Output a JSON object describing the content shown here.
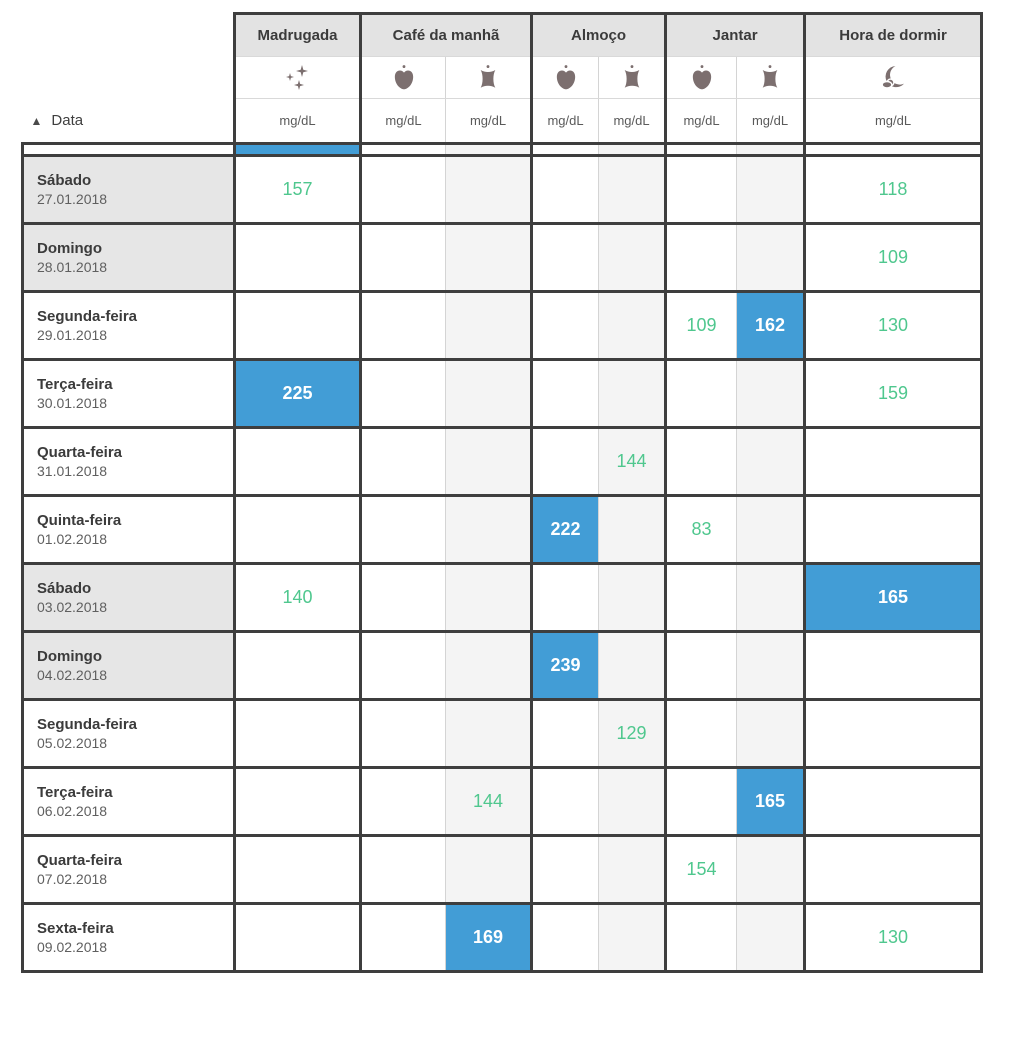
{
  "table": {
    "date_header": {
      "label": "Data",
      "sort_icon": "ascending-triangle"
    },
    "unit": "mg/dL",
    "groups": [
      {
        "label": "Madrugada",
        "icons": [
          "sparkles-icon"
        ],
        "cols": 1
      },
      {
        "label": "Café da manhã",
        "icons": [
          "apple-icon",
          "apple-core-icon"
        ],
        "cols": 2
      },
      {
        "label": "Almoço",
        "icons": [
          "apple-icon",
          "apple-core-icon"
        ],
        "cols": 2
      },
      {
        "label": "Jantar",
        "icons": [
          "apple-icon",
          "apple-core-icon"
        ],
        "cols": 2
      },
      {
        "label": "Hora de dormir",
        "icons": [
          "moon-cloud-icon"
        ],
        "cols": 1
      }
    ],
    "columns": [
      "madrugada",
      "cafe-before",
      "cafe-after",
      "almoco-before",
      "almoco-after",
      "jantar-before",
      "jantar-after",
      "hora-de-dormir"
    ],
    "partial_row": {
      "values": [
        "",
        "",
        "",
        "",
        "",
        "",
        "",
        ""
      ],
      "highlight": [
        0
      ]
    },
    "rows": [
      {
        "day": "Sábado",
        "date": "27.01.2018",
        "weekend": true,
        "values": [
          "157",
          "",
          "",
          "",
          "",
          "",
          "",
          "118"
        ],
        "highlight": []
      },
      {
        "day": "Domingo",
        "date": "28.01.2018",
        "weekend": true,
        "values": [
          "",
          "",
          "",
          "",
          "",
          "",
          "",
          "109"
        ],
        "highlight": []
      },
      {
        "day": "Segunda-feira",
        "date": "29.01.2018",
        "weekend": false,
        "values": [
          "",
          "",
          "",
          "",
          "",
          "109",
          "162",
          "130"
        ],
        "highlight": [
          6
        ]
      },
      {
        "day": "Terça-feira",
        "date": "30.01.2018",
        "weekend": false,
        "values": [
          "225",
          "",
          "",
          "",
          "",
          "",
          "",
          "159"
        ],
        "highlight": [
          0
        ]
      },
      {
        "day": "Quarta-feira",
        "date": "31.01.2018",
        "weekend": false,
        "values": [
          "",
          "",
          "",
          "",
          "144",
          "",
          "",
          ""
        ],
        "highlight": []
      },
      {
        "day": "Quinta-feira",
        "date": "01.02.2018",
        "weekend": false,
        "values": [
          "",
          "",
          "",
          "222",
          "",
          "83",
          "",
          ""
        ],
        "highlight": [
          3
        ]
      },
      {
        "day": "Sábado",
        "date": "03.02.2018",
        "weekend": true,
        "values": [
          "140",
          "",
          "",
          "",
          "",
          "",
          "",
          "165"
        ],
        "highlight": [
          7
        ]
      },
      {
        "day": "Domingo",
        "date": "04.02.2018",
        "weekend": true,
        "values": [
          "",
          "",
          "",
          "239",
          "",
          "",
          "",
          ""
        ],
        "highlight": [
          3
        ]
      },
      {
        "day": "Segunda-feira",
        "date": "05.02.2018",
        "weekend": false,
        "values": [
          "",
          "",
          "",
          "",
          "129",
          "",
          "",
          ""
        ],
        "highlight": []
      },
      {
        "day": "Terça-feira",
        "date": "06.02.2018",
        "weekend": false,
        "values": [
          "",
          "",
          "144",
          "",
          "",
          "",
          "165",
          ""
        ],
        "highlight": [
          6
        ]
      },
      {
        "day": "Quarta-feira",
        "date": "07.02.2018",
        "weekend": false,
        "values": [
          "",
          "",
          "",
          "",
          "",
          "154",
          "",
          ""
        ],
        "highlight": []
      },
      {
        "day": "Sexta-feira",
        "date": "09.02.2018",
        "weekend": false,
        "values": [
          "",
          "",
          "169",
          "",
          "",
          "",
          "",
          "130"
        ],
        "highlight": [
          2
        ]
      }
    ]
  },
  "colors": {
    "accent_blue": "#429dd6",
    "value_green": "#4fc78e",
    "icon_taupe": "#7c6f6f",
    "border_dark": "#3e3e3e",
    "header_bg": "#e3e3e3",
    "weekend_bg": "#e6e6e6",
    "after_column_bg": "#f4f4f4"
  }
}
